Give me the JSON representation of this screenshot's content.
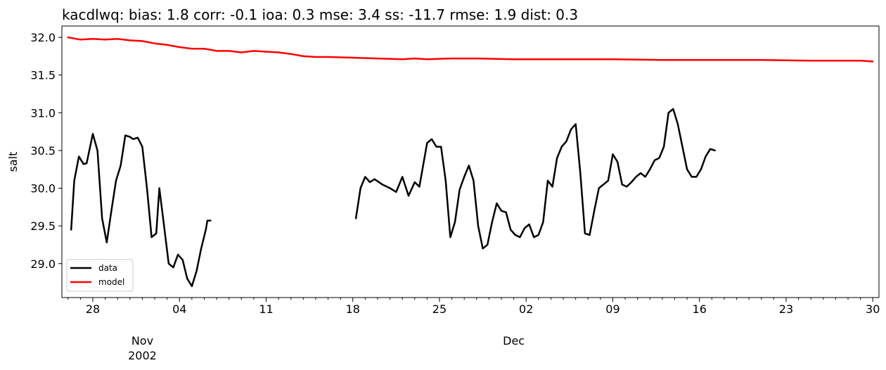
{
  "chart_data": {
    "type": "line",
    "title": "kacdlwq: bias: 1.8  corr: -0.1  ioa: 0.3  mse: 3.4  ss: -11.7  rmse: 1.9  dist: 0.3",
    "xlabel": "",
    "ylabel": "salt",
    "x_unit": "date",
    "xlim": [
      "2002-10-25T12:00",
      "2002-12-30T12:00"
    ],
    "ylim": [
      28.55,
      32.15
    ],
    "y_ticks": [
      29.0,
      29.5,
      30.0,
      30.5,
      31.0,
      31.5,
      32.0
    ],
    "y_tick_labels": [
      "29.0",
      "29.5",
      "30.0",
      "30.5",
      "31.0",
      "31.5",
      "32.0"
    ],
    "x_major_ticks": [
      "2002-10-28",
      "2002-11-04",
      "2002-11-11",
      "2002-11-18",
      "2002-11-25",
      "2002-12-02",
      "2002-12-09",
      "2002-12-16",
      "2002-12-23",
      "2002-12-30"
    ],
    "x_major_tick_labels": [
      "28",
      "04",
      "11",
      "18",
      "25",
      "02",
      "09",
      "16",
      "23",
      "30"
    ],
    "x_month_labels": [
      {
        "date": "2002-11-01",
        "label": "Nov"
      },
      {
        "date": "2002-12-01",
        "label": "Dec"
      }
    ],
    "x_year_label": {
      "date": "2002-11-01",
      "label": "2002"
    },
    "grid": false,
    "legend_position": "lower-left",
    "series": [
      {
        "name": "data",
        "color": "#000000",
        "segments": [
          [
            [
              "2002-10-26T06:00",
              29.45
            ],
            [
              "2002-10-26T12:00",
              30.1
            ],
            [
              "2002-10-26T21:00",
              30.42
            ],
            [
              "2002-10-27T06:00",
              30.32
            ],
            [
              "2002-10-27T12:00",
              30.33
            ],
            [
              "2002-10-28T00:00",
              30.72
            ],
            [
              "2002-10-28T09:00",
              30.5
            ],
            [
              "2002-10-28T18:00",
              29.6
            ],
            [
              "2002-10-29T03:00",
              29.28
            ],
            [
              "2002-10-29T12:00",
              29.7
            ],
            [
              "2002-10-29T21:00",
              30.1
            ],
            [
              "2002-10-30T06:00",
              30.3
            ],
            [
              "2002-10-30T15:00",
              30.7
            ],
            [
              "2002-10-31T00:00",
              30.68
            ],
            [
              "2002-10-31T06:00",
              30.65
            ],
            [
              "2002-10-31T15:00",
              30.67
            ],
            [
              "2002-11-01T00:00",
              30.55
            ],
            [
              "2002-11-01T09:00",
              30.0
            ],
            [
              "2002-11-01T18:00",
              29.35
            ],
            [
              "2002-11-02T03:00",
              29.4
            ],
            [
              "2002-11-02T09:00",
              30.0
            ],
            [
              "2002-11-02T18:00",
              29.5
            ],
            [
              "2002-11-03T03:00",
              29.0
            ],
            [
              "2002-11-03T12:00",
              28.95
            ],
            [
              "2002-11-03T21:00",
              29.12
            ],
            [
              "2002-11-04T06:00",
              29.05
            ],
            [
              "2002-11-04T15:00",
              28.8
            ],
            [
              "2002-11-05T00:00",
              28.7
            ],
            [
              "2002-11-05T09:00",
              28.9
            ],
            [
              "2002-11-05T18:00",
              29.2
            ],
            [
              "2002-11-06T03:00",
              29.45
            ],
            [
              "2002-11-06T06:00",
              29.57
            ],
            [
              "2002-11-06T12:00",
              29.57
            ]
          ],
          [
            [
              "2002-11-18T06:00",
              29.6
            ],
            [
              "2002-11-18T15:00",
              30.0
            ],
            [
              "2002-11-19T00:00",
              30.15
            ],
            [
              "2002-11-19T09:00",
              30.08
            ],
            [
              "2002-11-19T18:00",
              30.12
            ],
            [
              "2002-11-20T09:00",
              30.05
            ],
            [
              "2002-11-21T00:00",
              30.0
            ],
            [
              "2002-11-21T12:00",
              29.95
            ],
            [
              "2002-11-22T00:00",
              30.15
            ],
            [
              "2002-11-22T12:00",
              29.9
            ],
            [
              "2002-11-23T00:00",
              30.08
            ],
            [
              "2002-11-23T09:00",
              30.02
            ],
            [
              "2002-11-24T00:00",
              30.6
            ],
            [
              "2002-11-24T09:00",
              30.65
            ],
            [
              "2002-11-24T18:00",
              30.55
            ],
            [
              "2002-11-25T03:00",
              30.55
            ],
            [
              "2002-11-25T12:00",
              30.1
            ],
            [
              "2002-11-25T21:00",
              29.35
            ],
            [
              "2002-11-26T06:00",
              29.55
            ],
            [
              "2002-11-26T15:00",
              29.98
            ],
            [
              "2002-11-27T00:00",
              30.15
            ],
            [
              "2002-11-27T09:00",
              30.3
            ],
            [
              "2002-11-27T18:00",
              30.1
            ],
            [
              "2002-11-28T03:00",
              29.5
            ],
            [
              "2002-11-28T12:00",
              29.2
            ],
            [
              "2002-11-28T21:00",
              29.25
            ],
            [
              "2002-11-29T06:00",
              29.55
            ],
            [
              "2002-11-29T15:00",
              29.8
            ],
            [
              "2002-11-30T00:00",
              29.7
            ],
            [
              "2002-11-30T09:00",
              29.68
            ],
            [
              "2002-11-30T18:00",
              29.45
            ],
            [
              "2002-12-01T03:00",
              29.38
            ],
            [
              "2002-12-01T12:00",
              29.35
            ],
            [
              "2002-12-01T21:00",
              29.47
            ],
            [
              "2002-12-02T06:00",
              29.52
            ],
            [
              "2002-12-02T15:00",
              29.35
            ],
            [
              "2002-12-03T00:00",
              29.38
            ],
            [
              "2002-12-03T09:00",
              29.55
            ],
            [
              "2002-12-03T18:00",
              30.1
            ],
            [
              "2002-12-04T03:00",
              30.02
            ],
            [
              "2002-12-04T12:00",
              30.4
            ],
            [
              "2002-12-04T21:00",
              30.55
            ],
            [
              "2002-12-05T06:00",
              30.62
            ],
            [
              "2002-12-05T15:00",
              30.78
            ],
            [
              "2002-12-06T00:00",
              30.85
            ],
            [
              "2002-12-06T09:00",
              30.2
            ],
            [
              "2002-12-06T18:00",
              29.4
            ],
            [
              "2002-12-07T03:00",
              29.38
            ],
            [
              "2002-12-07T12:00",
              29.7
            ],
            [
              "2002-12-07T21:00",
              30.0
            ],
            [
              "2002-12-08T06:00",
              30.05
            ],
            [
              "2002-12-08T15:00",
              30.1
            ],
            [
              "2002-12-09T00:00",
              30.45
            ],
            [
              "2002-12-09T09:00",
              30.35
            ],
            [
              "2002-12-09T18:00",
              30.05
            ],
            [
              "2002-12-10T03:00",
              30.02
            ],
            [
              "2002-12-10T12:00",
              30.08
            ],
            [
              "2002-12-10T21:00",
              30.15
            ],
            [
              "2002-12-11T06:00",
              30.2
            ],
            [
              "2002-12-11T15:00",
              30.15
            ],
            [
              "2002-12-12T00:00",
              30.25
            ],
            [
              "2002-12-12T09:00",
              30.37
            ],
            [
              "2002-12-12T18:00",
              30.4
            ],
            [
              "2002-12-13T03:00",
              30.55
            ],
            [
              "2002-12-13T12:00",
              31.0
            ],
            [
              "2002-12-13T21:00",
              31.05
            ],
            [
              "2002-12-14T06:00",
              30.85
            ],
            [
              "2002-12-14T15:00",
              30.55
            ],
            [
              "2002-12-15T00:00",
              30.25
            ],
            [
              "2002-12-15T09:00",
              30.15
            ],
            [
              "2002-12-15T18:00",
              30.15
            ],
            [
              "2002-12-16T03:00",
              30.25
            ],
            [
              "2002-12-16T12:00",
              30.42
            ],
            [
              "2002-12-16T21:00",
              30.52
            ],
            [
              "2002-12-17T06:00",
              30.5
            ]
          ]
        ]
      },
      {
        "name": "model",
        "color": "#ff0000",
        "segments": [
          [
            [
              "2002-10-26T00:00",
              32.0
            ],
            [
              "2002-10-27T00:00",
              31.97
            ],
            [
              "2002-10-28T00:00",
              31.98
            ],
            [
              "2002-10-29T00:00",
              31.97
            ],
            [
              "2002-10-30T00:00",
              31.98
            ],
            [
              "2002-10-31T00:00",
              31.96
            ],
            [
              "2002-11-01T00:00",
              31.95
            ],
            [
              "2002-11-02T00:00",
              31.92
            ],
            [
              "2002-11-03T00:00",
              31.9
            ],
            [
              "2002-11-04T00:00",
              31.87
            ],
            [
              "2002-11-05T00:00",
              31.85
            ],
            [
              "2002-11-06T00:00",
              31.85
            ],
            [
              "2002-11-07T00:00",
              31.82
            ],
            [
              "2002-11-08T00:00",
              31.82
            ],
            [
              "2002-11-09T00:00",
              31.8
            ],
            [
              "2002-11-10T00:00",
              31.82
            ],
            [
              "2002-11-11T00:00",
              31.81
            ],
            [
              "2002-11-12T00:00",
              31.8
            ],
            [
              "2002-11-13T00:00",
              31.78
            ],
            [
              "2002-11-14T00:00",
              31.75
            ],
            [
              "2002-11-15T00:00",
              31.74
            ],
            [
              "2002-11-16T00:00",
              31.74
            ],
            [
              "2002-11-18T00:00",
              31.73
            ],
            [
              "2002-11-20T00:00",
              31.72
            ],
            [
              "2002-11-22T00:00",
              31.71
            ],
            [
              "2002-11-23T00:00",
              31.72
            ],
            [
              "2002-11-24T00:00",
              31.71
            ],
            [
              "2002-11-26T00:00",
              31.72
            ],
            [
              "2002-11-28T00:00",
              31.72
            ],
            [
              "2002-12-01T00:00",
              31.71
            ],
            [
              "2002-12-05T00:00",
              31.71
            ],
            [
              "2002-12-09T00:00",
              31.71
            ],
            [
              "2002-12-13T00:00",
              31.7
            ],
            [
              "2002-12-17T00:00",
              31.7
            ],
            [
              "2002-12-21T00:00",
              31.7
            ],
            [
              "2002-12-25T00:00",
              31.69
            ],
            [
              "2002-12-29T00:00",
              31.69
            ],
            [
              "2002-12-30T00:00",
              31.68
            ]
          ]
        ]
      }
    ]
  }
}
